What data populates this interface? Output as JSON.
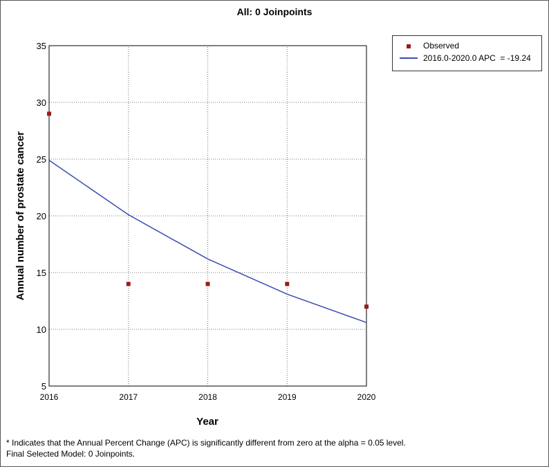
{
  "chart_data": {
    "type": "line",
    "title": "All: 0 Joinpoints",
    "xlabel": "Year",
    "ylabel": "Annual number of prostate cancer",
    "xlim": [
      2016,
      2020
    ],
    "ylim": [
      5,
      35
    ],
    "xticks": [
      "2016",
      "2017",
      "2018",
      "2019",
      "2020"
    ],
    "yticks": [
      "5",
      "10",
      "15",
      "20",
      "25",
      "30",
      "35"
    ],
    "grid": true,
    "legend_placement": "top-right",
    "series": [
      {
        "name": "Observed",
        "kind": "scatter",
        "color": "#9b1c1c",
        "x": [
          2016,
          2017,
          2018,
          2019,
          2020
        ],
        "y": [
          29,
          14,
          14,
          14,
          12
        ]
      },
      {
        "name": "2016.0-2020.0 APC  = -19.24",
        "kind": "line",
        "color": "#3a4bb0",
        "x": [
          2016,
          2017,
          2018,
          2019,
          2020
        ],
        "y": [
          24.9,
          20.1,
          16.2,
          13.1,
          10.6
        ]
      }
    ]
  },
  "footnotes": [
    "* Indicates that the Annual Percent Change (APC) is significantly different from zero at the alpha = 0.05 level.",
    "Final Selected Model: 0 Joinpoints."
  ]
}
